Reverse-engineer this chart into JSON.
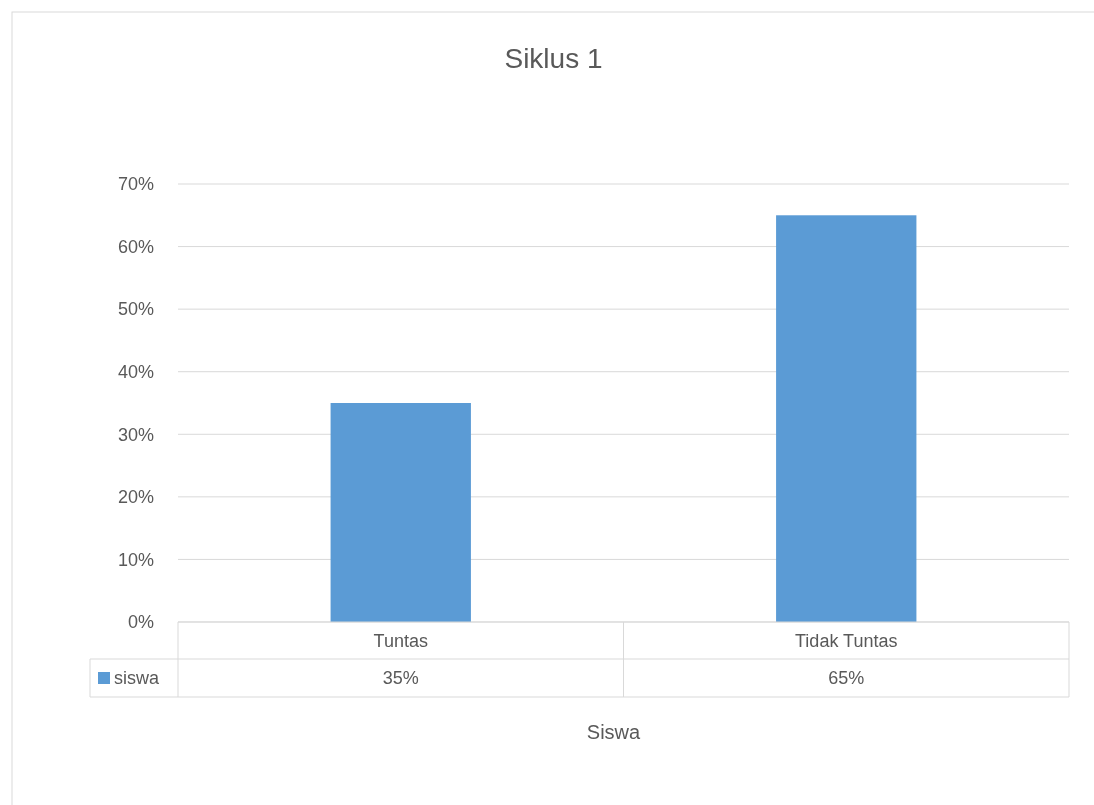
{
  "chart_data": {
    "type": "bar",
    "title": "Siklus 1",
    "xlabel": "Siswa",
    "categories": [
      "Tuntas",
      "Tidak Tuntas"
    ],
    "series": [
      {
        "name": "siswa",
        "color": "#5b9bd5",
        "values": [
          35,
          65
        ],
        "value_labels": [
          "35%",
          "65%"
        ]
      }
    ],
    "ylim": [
      0,
      70
    ],
    "yticks": [
      {
        "value": 0,
        "label": "0%"
      },
      {
        "value": 10,
        "label": "10%"
      },
      {
        "value": 20,
        "label": "20%"
      },
      {
        "value": 30,
        "label": "30%"
      },
      {
        "value": 40,
        "label": "40%"
      },
      {
        "value": 50,
        "label": "50%"
      },
      {
        "value": 60,
        "label": "60%"
      },
      {
        "value": 70,
        "label": "70%"
      }
    ],
    "grid": "y",
    "legend": "bottom"
  }
}
